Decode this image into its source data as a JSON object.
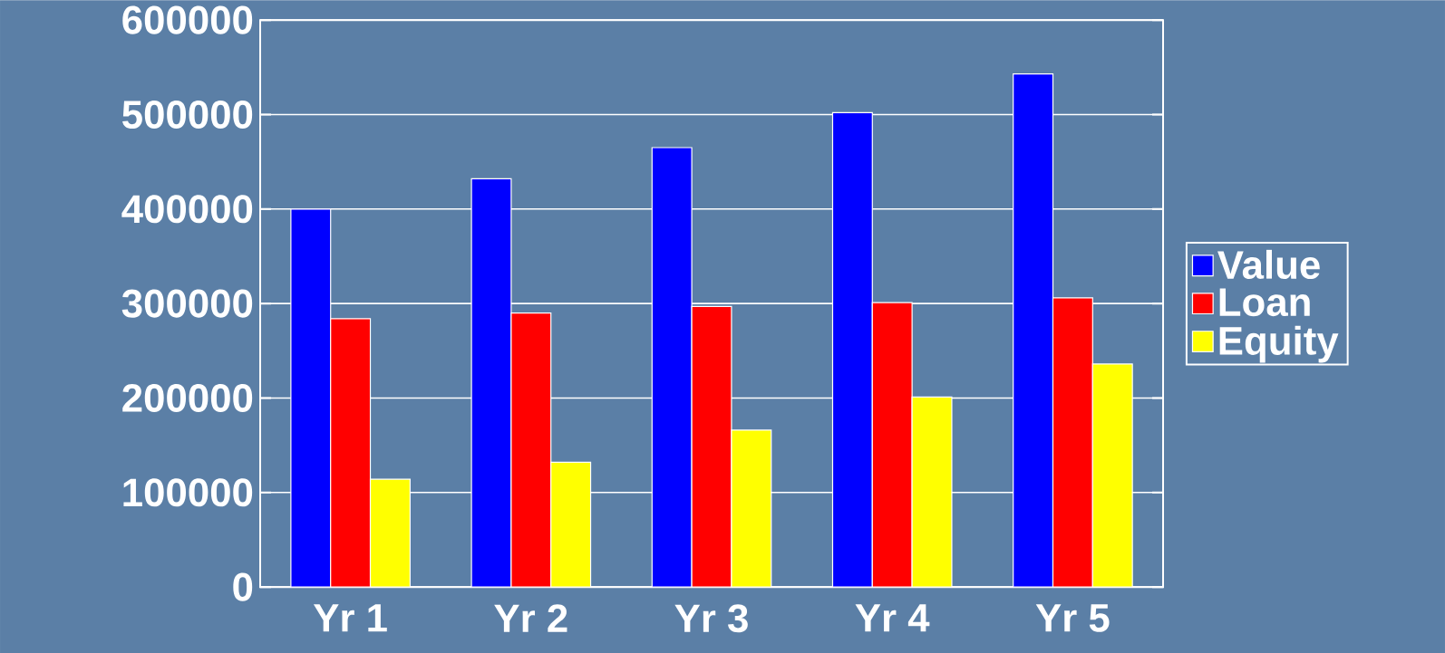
{
  "chart_data": {
    "type": "bar",
    "categories": [
      "Yr 1",
      "Yr 2",
      "Yr 3",
      "Yr 4",
      "Yr 5"
    ],
    "series": [
      {
        "name": "Value",
        "color": "#0000ff",
        "values": [
          400000,
          432000,
          465000,
          502000,
          543000
        ]
      },
      {
        "name": "Loan",
        "color": "#ff0000",
        "values": [
          284000,
          290000,
          297000,
          301000,
          306000
        ]
      },
      {
        "name": "Equity",
        "color": "#ffff00",
        "values": [
          114000,
          132000,
          166000,
          201000,
          236000
        ]
      }
    ],
    "ylim": [
      0,
      600000
    ],
    "yticks": [
      0,
      100000,
      200000,
      300000,
      400000,
      500000,
      600000
    ],
    "grid": "y",
    "legend": "right"
  }
}
